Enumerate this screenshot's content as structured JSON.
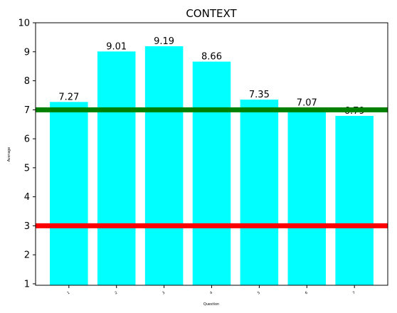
{
  "chart_data": {
    "type": "bar",
    "title": "CONTEXT",
    "xlabel": "Question",
    "ylabel": "Average",
    "categories": [
      "1",
      "2",
      "3",
      "4",
      "5",
      "6",
      "7"
    ],
    "values": [
      7.27,
      9.01,
      9.19,
      8.66,
      7.35,
      7.07,
      6.79
    ],
    "data_labels": [
      "7.27",
      "9.01",
      "9.19",
      "8.66",
      "7.35",
      "7.07",
      "6.79"
    ],
    "ylim": [
      0.95,
      10
    ],
    "yticks": [
      1,
      2,
      3,
      4,
      5,
      6,
      7,
      8,
      9,
      10
    ],
    "bar_color": "#00ffff",
    "reference_lines": [
      {
        "value": 7,
        "color": "#008000"
      },
      {
        "value": 3,
        "color": "#ff0000"
      }
    ],
    "grid": false
  }
}
